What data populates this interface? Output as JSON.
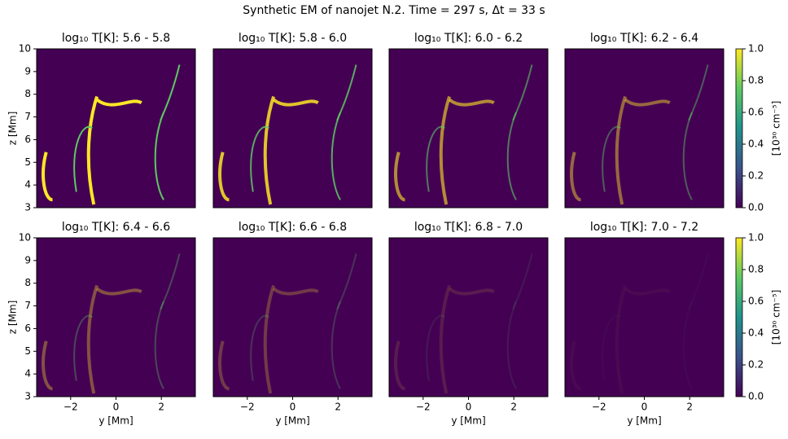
{
  "suptitle": "Synthetic EM of nanojet N.2. Time = 297 s, Δt = 33 s",
  "chart_data": [
    {
      "type": "heatmap",
      "title": "log₁₀ T[K]: 5.6 - 5.8",
      "colormap": [
        "#440154",
        "#3b528b",
        "#21918c",
        "#5ec962",
        "#fde725"
      ],
      "xlim": [
        -3.5,
        3.5
      ],
      "ylim": [
        3,
        10
      ],
      "ylabel": "z [Mm]",
      "yticks": [
        3,
        4,
        5,
        6,
        7,
        8,
        9,
        10
      ]
    },
    {
      "type": "heatmap",
      "title": "log₁₀ T[K]: 5.8 - 6.0",
      "colormap": [
        "#440154",
        "#3b528b",
        "#21918c",
        "#5ec962",
        "#fde725"
      ],
      "xlim": [
        -3.5,
        3.5
      ],
      "ylim": [
        3,
        10
      ]
    },
    {
      "type": "heatmap",
      "title": "log₁₀ T[K]: 6.0 - 6.2",
      "colormap": [
        "#440154",
        "#3b528b",
        "#21918c",
        "#5ec962",
        "#fde725"
      ],
      "xlim": [
        -3.5,
        3.5
      ],
      "ylim": [
        3,
        10
      ]
    },
    {
      "type": "heatmap",
      "title": "log₁₀ T[K]: 6.2 - 6.4",
      "colormap": [
        "#440154",
        "#3b528b",
        "#21918c",
        "#5ec962",
        "#fde725"
      ],
      "xlim": [
        -3.5,
        3.5
      ],
      "ylim": [
        3,
        10
      ]
    },
    {
      "type": "heatmap",
      "title": "log₁₀ T[K]: 6.4 - 6.6",
      "colormap": [
        "#440154",
        "#3b528b",
        "#21918c",
        "#5ec962",
        "#fde725"
      ],
      "xlim": [
        -3.5,
        3.5
      ],
      "ylim": [
        3,
        10
      ],
      "ylabel": "z [Mm]",
      "yticks": [
        3,
        4,
        5,
        6,
        7,
        8,
        9,
        10
      ],
      "xlabel": "y [Mm]",
      "xticks": [
        {
          "value": -2,
          "label": "−2"
        },
        0,
        2
      ]
    },
    {
      "type": "heatmap",
      "title": "log₁₀ T[K]: 6.6 - 6.8",
      "colormap": [
        "#440154",
        "#3b528b",
        "#21918c",
        "#5ec962",
        "#fde725"
      ],
      "xlim": [
        -3.5,
        3.5
      ],
      "ylim": [
        3,
        10
      ],
      "xlabel": "y [Mm]",
      "xticks": [
        {
          "value": -2,
          "label": "−2"
        },
        0,
        2
      ]
    },
    {
      "type": "heatmap",
      "title": "log₁₀ T[K]: 6.8 - 7.0",
      "colormap": [
        "#440154",
        "#3b528b",
        "#21918c",
        "#5ec962",
        "#fde725"
      ],
      "xlim": [
        -3.5,
        3.5
      ],
      "ylim": [
        3,
        10
      ],
      "xlabel": "y [Mm]",
      "xticks": [
        {
          "value": -2,
          "label": "−2"
        },
        0,
        2
      ]
    },
    {
      "type": "heatmap",
      "title": "log₁₀ T[K]: 7.0 - 7.2",
      "colormap": [
        "#440154",
        "#3b528b",
        "#21918c",
        "#5ec962",
        "#fde725"
      ],
      "xlim": [
        -3.5,
        3.5
      ],
      "ylim": [
        3,
        10
      ],
      "xlabel": "y [Mm]",
      "xticks": [
        {
          "value": -2,
          "label": "−2"
        },
        0,
        2
      ]
    },
    {
      "type": "colorbar",
      "label": "[10³⁰ cm⁻⁵]",
      "colormap": [
        "#440154",
        "#3b528b",
        "#21918c",
        "#5ec962",
        "#fde725"
      ],
      "ylim": [
        0,
        1
      ],
      "yticks": [
        {
          "value": 0,
          "label": "0.0"
        },
        {
          "value": 0.2,
          "label": "0.2"
        },
        {
          "value": 0.4,
          "label": "0.4"
        },
        {
          "value": 0.6,
          "label": "0.6"
        },
        {
          "value": 0.8,
          "label": "0.8"
        },
        {
          "value": 1,
          "label": "1.0"
        }
      ]
    },
    {
      "type": "colorbar",
      "label": "[10³⁰ cm⁻⁵]",
      "colormap": [
        "#440154",
        "#3b528b",
        "#21918c",
        "#5ec962",
        "#fde725"
      ],
      "ylim": [
        0,
        1
      ],
      "yticks": [
        {
          "value": 0,
          "label": "0.0"
        },
        {
          "value": 0.2,
          "label": "0.2"
        },
        {
          "value": 0.4,
          "label": "0.4"
        },
        {
          "value": 0.6,
          "label": "0.6"
        },
        {
          "value": 0.8,
          "label": "0.8"
        },
        {
          "value": 1,
          "label": "1.0"
        }
      ]
    }
  ]
}
